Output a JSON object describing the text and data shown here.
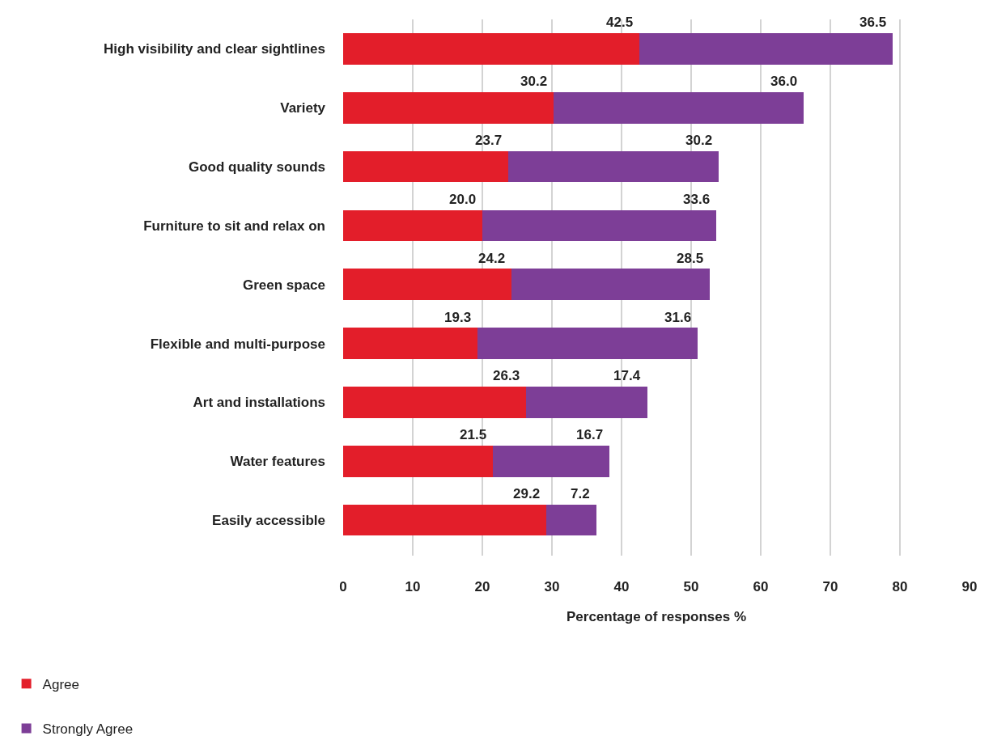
{
  "chart_data": {
    "type": "bar",
    "orientation": "horizontal",
    "stacked": true,
    "categories": [
      "High visibility and clear sightlines",
      "Variety",
      "Good quality sounds",
      "Furniture to sit and relax on",
      "Green space",
      "Flexible and multi-purpose",
      "Art and installations",
      "Water features",
      "Easily accessible"
    ],
    "series": [
      {
        "name": "Agree",
        "color": "#e31e2a",
        "values": [
          42.5,
          30.2,
          23.7,
          20.0,
          24.2,
          19.3,
          26.3,
          21.5,
          29.2
        ],
        "value_labels": [
          "42.5",
          "30.2",
          "23.7",
          "20.0",
          "24.2",
          "19.3",
          "26.3",
          "21.5",
          "29.2"
        ]
      },
      {
        "name": "Strongly Agree",
        "color": "#7d3e97",
        "values": [
          36.5,
          36.0,
          30.2,
          33.6,
          28.5,
          31.6,
          17.4,
          16.7,
          7.2
        ],
        "value_labels": [
          "36.5",
          "36.0",
          "30.2",
          "33.6",
          "28.5",
          "31.6",
          "17.4",
          "16.7",
          "7.2"
        ]
      }
    ],
    "xlabel": "Percentage of responses %",
    "xlim": [
      0,
      90
    ],
    "xticks": [
      0,
      10,
      20,
      30,
      40,
      50,
      60,
      70,
      80,
      90
    ],
    "grid": "x",
    "legend": "bottom left"
  }
}
